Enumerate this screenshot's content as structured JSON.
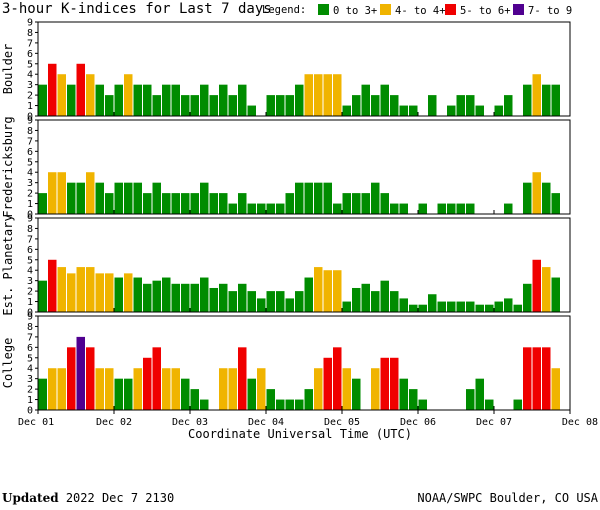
{
  "chart_data": {
    "type": "bar",
    "title": "3-hour K-indices for Last 7 days",
    "xlabel": "Coordinate Universal Time (UTC)",
    "x_tick_labels": [
      "Dec 01",
      "Dec 02",
      "Dec 03",
      "Dec 04",
      "Dec 05",
      "Dec 06",
      "Dec 07",
      "Dec 08"
    ],
    "y_tick_labels": [
      "0",
      "1",
      "2",
      "3",
      "4",
      "5",
      "6",
      "7",
      "8",
      "9"
    ],
    "ylim": [
      0,
      9
    ],
    "grid": false,
    "legend_position": "top",
    "legend": {
      "title": "Legend:",
      "items": [
        {
          "label": "0 to 3+",
          "color": "#008c00"
        },
        {
          "label": "4- to 4+",
          "color": "#f0b400"
        },
        {
          "label": "5- to 6+",
          "color": "#f00000"
        },
        {
          "label": "7- to 9",
          "color": "#500090"
        }
      ]
    },
    "panels": [
      {
        "name": "Boulder",
        "values": [
          3,
          5,
          4,
          3,
          5,
          4,
          3,
          2,
          3,
          4,
          3,
          3,
          2,
          3,
          3,
          2,
          2,
          3,
          2,
          3,
          2,
          3,
          1,
          0,
          2,
          2,
          2,
          3,
          4,
          4,
          4,
          4,
          1,
          2,
          3,
          2,
          3,
          2,
          1,
          1,
          0,
          2,
          0,
          1,
          2,
          2,
          1,
          0,
          1,
          2,
          0,
          3,
          4,
          3,
          3,
          0
        ]
      },
      {
        "name": "Fredericksburg",
        "values": [
          2,
          4,
          4,
          3,
          3,
          4,
          3,
          2,
          3,
          3,
          3,
          2,
          3,
          2,
          2,
          2,
          2,
          3,
          2,
          2,
          1,
          2,
          1,
          1,
          1,
          1,
          2,
          3,
          3,
          3,
          3,
          1,
          2,
          2,
          2,
          3,
          2,
          1,
          1,
          0,
          1,
          0,
          1,
          1,
          1,
          1,
          0,
          0,
          0,
          1,
          0,
          3,
          4,
          3,
          2,
          0
        ]
      },
      {
        "name": "Est. Planetary",
        "values": [
          3,
          5,
          4.3,
          3.7,
          4.3,
          4.3,
          3.7,
          3.7,
          3.3,
          3.7,
          3.3,
          2.7,
          3,
          3.3,
          2.7,
          2.7,
          2.7,
          3.3,
          2.3,
          2.7,
          2,
          2.7,
          2,
          1.3,
          2,
          2,
          1.3,
          2,
          3.3,
          4.3,
          4,
          4,
          1,
          2.3,
          2.7,
          2,
          3,
          2,
          1.3,
          0.7,
          0.7,
          1.7,
          1,
          1,
          1,
          1,
          0.7,
          0.7,
          1,
          1.3,
          0.7,
          2.7,
          5,
          4.3,
          3.3,
          0
        ]
      },
      {
        "name": "College",
        "values": [
          3,
          4,
          4,
          6,
          7,
          6,
          4,
          4,
          3,
          3,
          4,
          5,
          6,
          4,
          4,
          3,
          2,
          1,
          0,
          4,
          4,
          6,
          3,
          4,
          2,
          1,
          1,
          1,
          2,
          4,
          5,
          6,
          4,
          3,
          0,
          4,
          5,
          5,
          3,
          2,
          1,
          0,
          0,
          0,
          0,
          2,
          3,
          1,
          0,
          0,
          1,
          6,
          6,
          6,
          4,
          0
        ]
      }
    ]
  },
  "footer": {
    "updated_label": "Updated",
    "updated_value": " 2022 Dec  7 2130",
    "source": "NOAA/SWPC Boulder, CO USA"
  }
}
